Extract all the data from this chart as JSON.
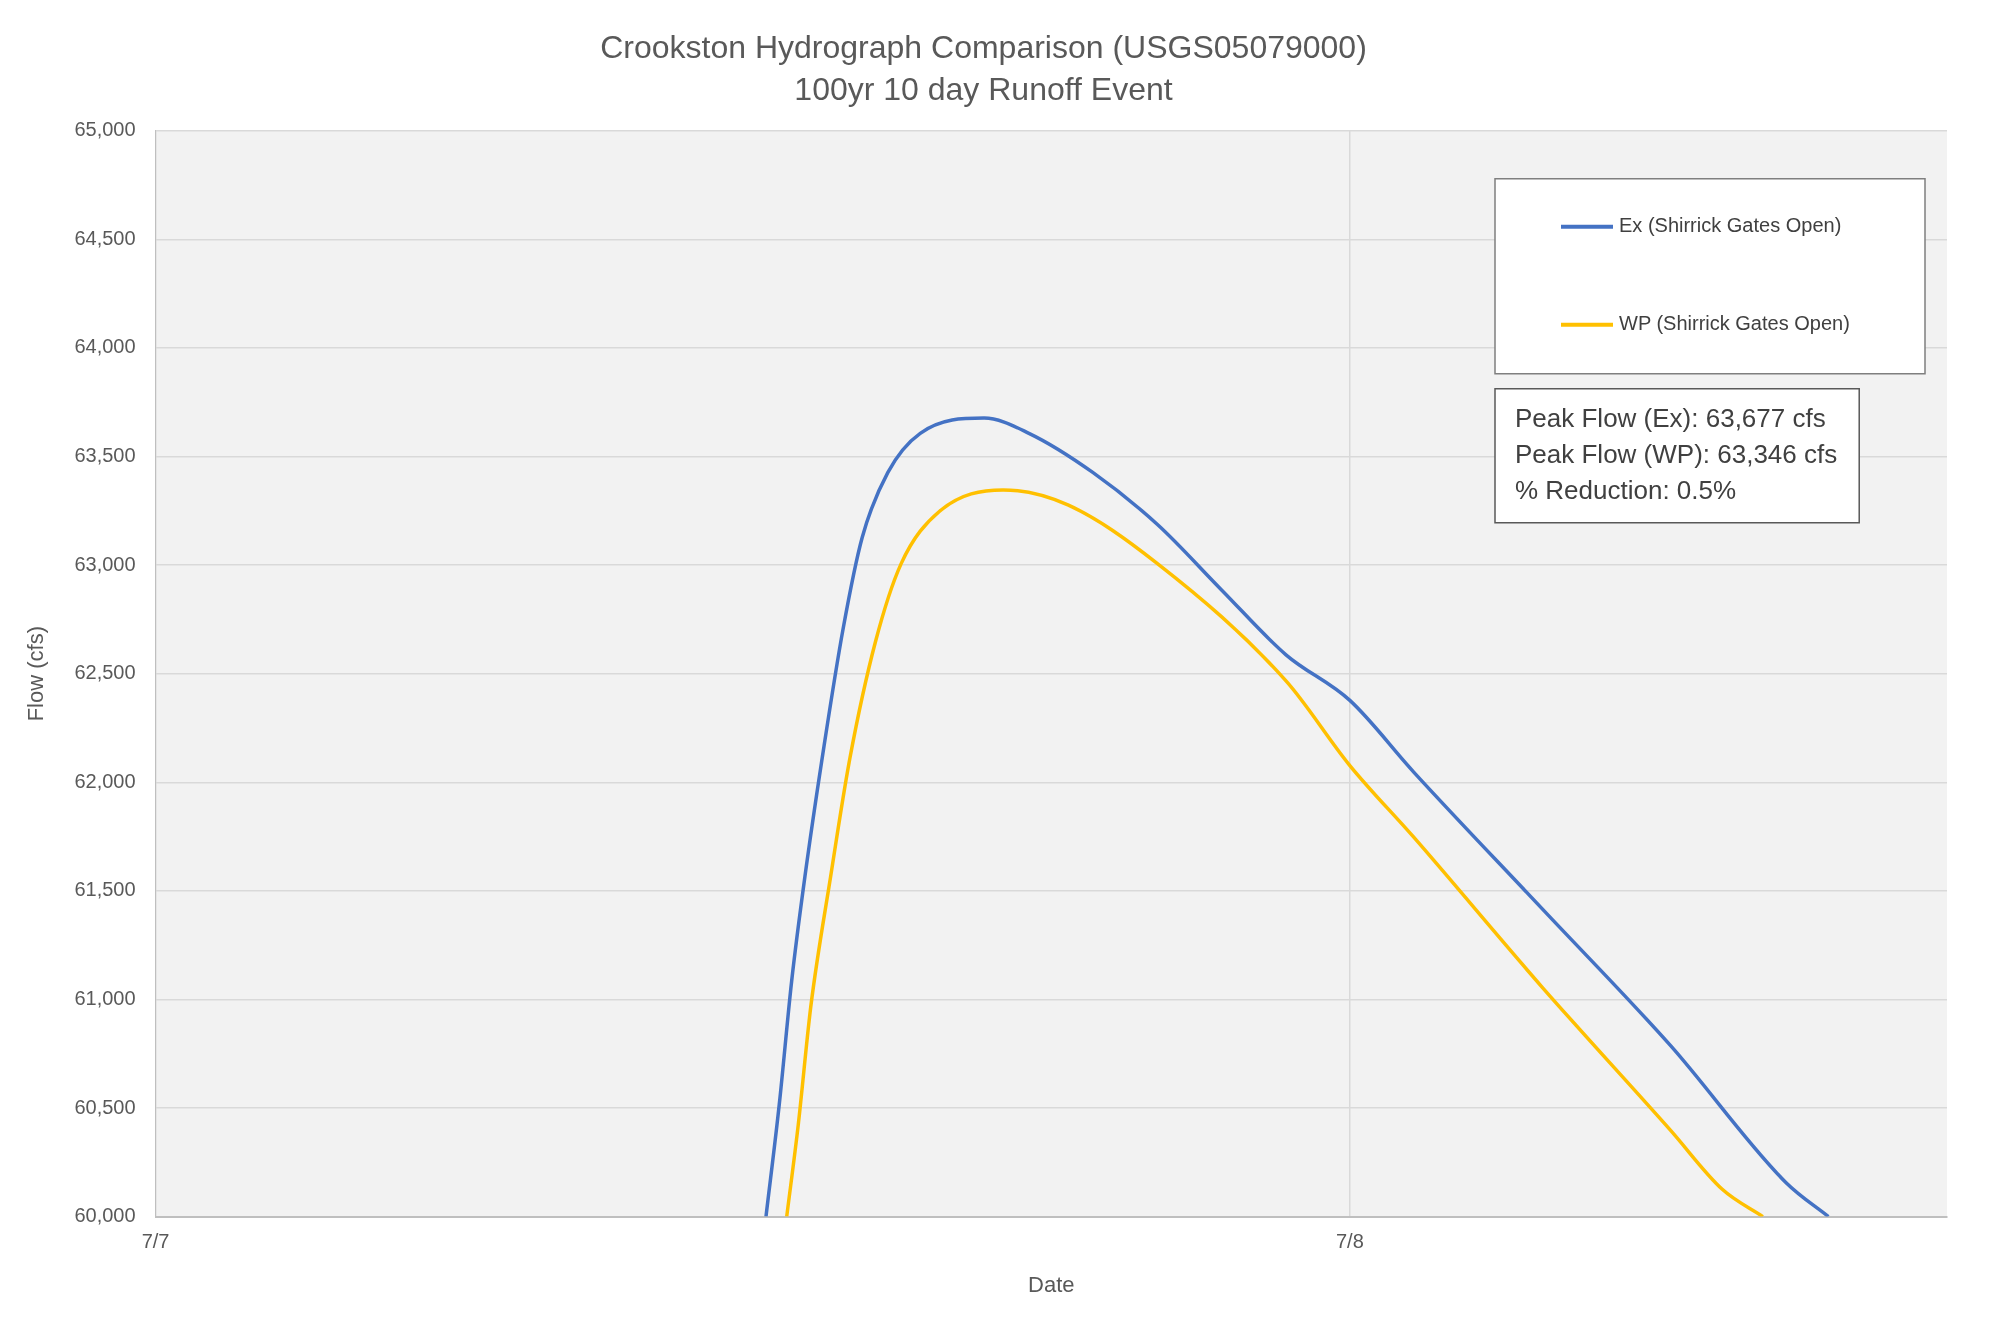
{
  "chart_data": {
    "type": "line",
    "title": "Crookston Hydrograph Comparison (USGS05079000)",
    "subtitle": "100yr 10 day Runoff Event",
    "xlabel": "Date",
    "ylabel": "Flow (cfs)",
    "xlim": [
      "--07-07",
      "--07-08T12:00"
    ],
    "xticks": [
      {
        "value": "--07-07",
        "label": "7/7"
      },
      {
        "value": "--07-08",
        "label": "7/8"
      }
    ],
    "ylim": [
      60000,
      65000
    ],
    "yticks": [
      {
        "value": 60000,
        "label": "60,000"
      },
      {
        "value": 60500,
        "label": "60,500"
      },
      {
        "value": 61000,
        "label": "61,000"
      },
      {
        "value": 61500,
        "label": "61,500"
      },
      {
        "value": 62000,
        "label": "62,000"
      },
      {
        "value": 62500,
        "label": "62,500"
      },
      {
        "value": 63000,
        "label": "63,000"
      },
      {
        "value": 63500,
        "label": "63,500"
      },
      {
        "value": 64000,
        "label": "64,000"
      },
      {
        "value": 64500,
        "label": "64,500"
      },
      {
        "value": 65000,
        "label": "65,000"
      }
    ],
    "grid": true,
    "legend": "top right",
    "marker": "none",
    "line_style": "solid",
    "annotations": [
      "Peak Flow (Ex): 63,677 cfs",
      "Peak Flow (WP): 63,346 cfs",
      "% Reduction: 0.5%"
    ],
    "series": [
      {
        "name": "Ex (Shirrick Gates Open)",
        "color": "#4472c4",
        "x": [
          "--07-07T12:16",
          "--07-07T12:32",
          "--07-07T12:47",
          "--07-07T13:03",
          "--07-07T13:26",
          "--07-07T13:49",
          "--07-07T14:12",
          "--07-07T14:43",
          "--07-07T15:22",
          "--07-07T16:39",
          "--07-07T17:33",
          "--07-07T18:50",
          "--07-07T20:08",
          "--07-07T21:25",
          "--07-07T22:43",
          "--07-08T00:00",
          "--07-08T01:17",
          "--07-08T03:52",
          "--07-08T06:27",
          "--07-08T08:46",
          "--07-08T09:37"
        ],
        "values": [
          60000,
          60516,
          61086,
          61567,
          62167,
          62707,
          63127,
          63427,
          63607,
          63677,
          63607,
          63427,
          63187,
          62887,
          62587,
          62377,
          62047,
          61417,
          60786,
          60156,
          60000
        ]
      },
      {
        "name": "WP (Shirrick Gates Open)",
        "color": "#ffc000",
        "x": [
          "--07-07T12:41",
          "--07-07T12:55",
          "--07-07T13:10",
          "--07-07T13:34",
          "--07-07T13:57",
          "--07-07T14:28",
          "--07-07T14:59",
          "--07-07T15:45",
          "--07-07T17:02",
          "--07-07T18:20",
          "--07-07T20:08",
          "--07-07T22:43",
          "--07-08T00:00",
          "--07-08T01:17",
          "--07-08T03:52",
          "--07-08T06:27",
          "--07-08T07:29",
          "--07-08T08:18"
        ],
        "values": [
          60000,
          60426,
          60966,
          61567,
          62107,
          62647,
          63007,
          63247,
          63346,
          63277,
          63007,
          62467,
          62077,
          61747,
          61056,
          60396,
          60126,
          60000
        ]
      }
    ]
  }
}
